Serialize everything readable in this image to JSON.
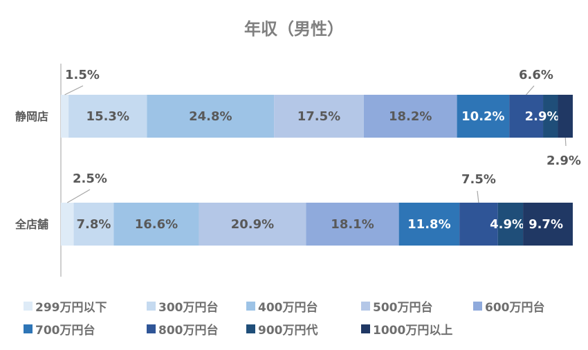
{
  "chart_data": {
    "type": "bar",
    "orientation": "horizontal",
    "stacked": true,
    "normalized": true,
    "title": "年収（男性）",
    "categories": [
      "静岡店",
      "全店舗"
    ],
    "series": [
      {
        "name": "299万円以下",
        "values": [
          1.5,
          2.5
        ],
        "color": "#deebf7"
      },
      {
        "name": "300万円台",
        "values": [
          15.3,
          7.8
        ],
        "color": "#c5daf0"
      },
      {
        "name": "400万円台",
        "values": [
          24.8,
          16.6
        ],
        "color": "#9dc3e6"
      },
      {
        "name": "500万円台",
        "values": [
          17.5,
          20.9
        ],
        "color": "#b4c7e7"
      },
      {
        "name": "600万円台",
        "values": [
          18.2,
          18.1
        ],
        "color": "#8faadc"
      },
      {
        "name": "700万円台",
        "values": [
          10.2,
          11.8
        ],
        "color": "#2e75b6"
      },
      {
        "name": "800万円台",
        "values": [
          6.6,
          7.5
        ],
        "color": "#2f5597"
      },
      {
        "name": "900万円代",
        "values": [
          2.9,
          4.9
        ],
        "color": "#1f4e79"
      },
      {
        "name": "1000万円以上",
        "values": [
          2.9,
          9.7
        ],
        "color": "#203864"
      }
    ],
    "data_labels": [
      [
        "1.5%",
        "15.3%",
        "24.8%",
        "17.5%",
        "18.2%",
        "10.2%",
        "6.6%",
        "2.9%",
        "2.9%"
      ],
      [
        "2.5%",
        "7.8%",
        "16.6%",
        "20.9%",
        "18.1%",
        "11.8%",
        "7.5%",
        "4.9%",
        "9.7%"
      ]
    ],
    "legend_position": "bottom",
    "grid": false
  }
}
